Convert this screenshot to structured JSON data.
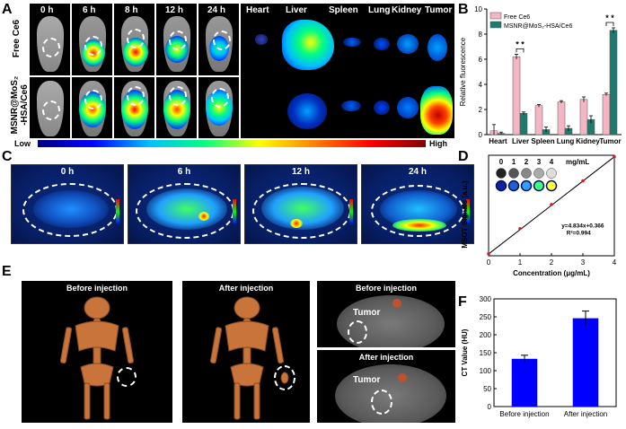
{
  "panels": {
    "A": "A",
    "B": "B",
    "C": "C",
    "D": "D",
    "E": "E",
    "F": "F"
  },
  "panelA": {
    "time_labels": [
      "0 h",
      "6 h",
      "8 h",
      "12 h",
      "24 h"
    ],
    "organ_labels": [
      "Heart",
      "Liver",
      "Spleen",
      "Lung",
      "Kidney",
      "Tumor"
    ],
    "row1_label": "Free Ce6",
    "row2_label_line1": "MSNR@MoS₂",
    "row2_label_line2": "-HSA/Ce6",
    "colorbar_low": "Low",
    "colorbar_high": "High"
  },
  "panelC": {
    "time_labels": [
      "0 h",
      "6 h",
      "12 h",
      "24 h"
    ]
  },
  "panelE": {
    "ct3d_titles": [
      "Before injection",
      "After injection"
    ],
    "slice_titles": [
      "Before injection",
      "After injection"
    ],
    "tumor_label": "Tumor"
  },
  "colors": {
    "free_ce6": "#f4b6c2",
    "msnr": "#1f7a6e",
    "ct_bar": "#0000ff",
    "fit_line": "#000000",
    "fit_points": "#d62020"
  },
  "chart_data": [
    {
      "id": "B",
      "type": "bar",
      "ylabel": "Relative fluorescence",
      "ylim": [
        0,
        10
      ],
      "yticks": [
        0,
        2,
        4,
        6,
        8,
        10
      ],
      "categories": [
        "Heart",
        "Liver",
        "Spleen",
        "Lung",
        "Kidney",
        "Tumor"
      ],
      "series": [
        {
          "name": "Free Ce6",
          "values": [
            0.3,
            6.2,
            2.3,
            2.6,
            2.8,
            3.2
          ],
          "errors": [
            0.5,
            0.2,
            0.1,
            0.1,
            0.2,
            0.1
          ]
        },
        {
          "name": "MSNR@MoS₂-HSA/Ce6",
          "values": [
            0.1,
            1.7,
            0.4,
            0.5,
            1.2,
            8.3
          ],
          "errors": [
            0.1,
            0.1,
            0.2,
            0.2,
            0.3,
            0.2
          ]
        }
      ],
      "significance": [
        {
          "category": "Liver",
          "label": "* *"
        },
        {
          "category": "Tumor",
          "label": "* *"
        }
      ],
      "legend": "top-left"
    },
    {
      "id": "D",
      "type": "scatter",
      "xlabel": "Concentration (μg/mL)",
      "ylabel": "MSOT Signals (a.u.)",
      "xlim": [
        0,
        4
      ],
      "ylim": [
        0,
        20
      ],
      "xticks": [
        0,
        1,
        2,
        3,
        4
      ],
      "points_x": [
        0,
        1,
        2,
        3,
        4
      ],
      "points_y": [
        0.4,
        5.4,
        10.2,
        14.9,
        19.7
      ],
      "fit_slope": 4.834,
      "fit_intercept": 0.366,
      "equation": "y=4.834x+0.366",
      "r2": "R²=0.994",
      "inset_labels": [
        "0",
        "1",
        "2",
        "3",
        "4",
        "mg/mL"
      ]
    },
    {
      "id": "F",
      "type": "bar",
      "ylabel": "CT Value (HU)",
      "ylim": [
        0,
        300
      ],
      "yticks": [
        0,
        50,
        100,
        150,
        200,
        250,
        300
      ],
      "categories": [
        "Before injection",
        "After injection"
      ],
      "values": [
        133,
        246
      ],
      "errors": [
        10,
        20
      ]
    }
  ]
}
